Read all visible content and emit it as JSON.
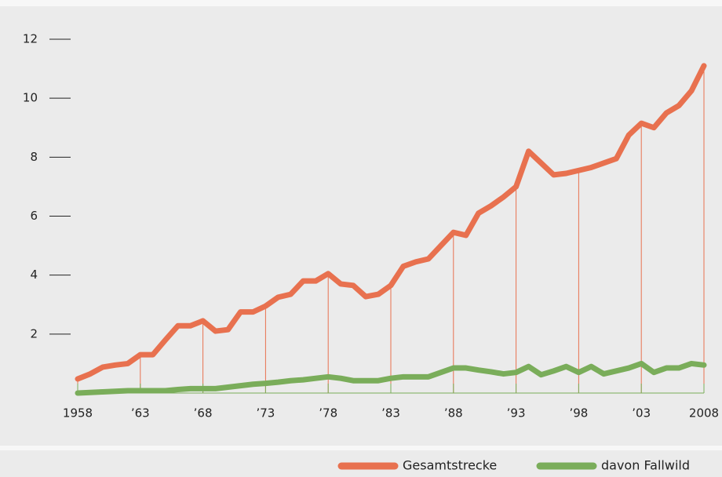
{
  "chart_data": {
    "type": "line",
    "x": [
      1958,
      1959,
      1960,
      1961,
      1962,
      1963,
      1964,
      1965,
      1966,
      1967,
      1968,
      1969,
      1970,
      1971,
      1972,
      1973,
      1974,
      1975,
      1976,
      1977,
      1978,
      1979,
      1980,
      1981,
      1982,
      1983,
      1984,
      1985,
      1986,
      1987,
      1988,
      1989,
      1990,
      1991,
      1992,
      1993,
      1994,
      1995,
      1996,
      1997,
      1998,
      1999,
      2000,
      2001,
      2002,
      2003,
      2004,
      2005,
      2006,
      2007,
      2008
    ],
    "series": [
      {
        "name": "Gesamtstrecke",
        "color": "#e8714f",
        "values": [
          0.48,
          0.65,
          0.88,
          0.95,
          1.0,
          1.3,
          1.3,
          1.8,
          2.28,
          2.28,
          2.45,
          2.1,
          2.15,
          2.75,
          2.75,
          2.95,
          3.25,
          3.35,
          3.8,
          3.8,
          4.05,
          3.7,
          3.65,
          3.27,
          3.35,
          3.65,
          4.3,
          4.45,
          4.55,
          5.0,
          5.45,
          5.35,
          6.1,
          6.35,
          6.65,
          7.0,
          8.2,
          7.8,
          7.4,
          7.45,
          7.55,
          7.65,
          7.8,
          7.95,
          8.75,
          9.15,
          9.0,
          9.5,
          9.75,
          10.25,
          11.1
        ]
      },
      {
        "name": "davon Fallwild",
        "color": "#7aad5a",
        "values": [
          0,
          0.02,
          0.04,
          0.06,
          0.08,
          0.08,
          0.08,
          0.08,
          0.12,
          0.15,
          0.15,
          0.15,
          0.2,
          0.25,
          0.3,
          0.33,
          0.37,
          0.42,
          0.45,
          0.5,
          0.55,
          0.5,
          0.42,
          0.42,
          0.42,
          0.5,
          0.55,
          0.55,
          0.55,
          0.7,
          0.85,
          0.85,
          0.78,
          0.72,
          0.65,
          0.7,
          0.9,
          0.62,
          0.75,
          0.9,
          0.7,
          0.9,
          0.65,
          0.75,
          0.85,
          1.0,
          0.7,
          0.85,
          0.85,
          1.0,
          0.95
        ]
      }
    ],
    "xlim": [
      1958,
      2008
    ],
    "xticks": [
      1958,
      {
        "value": 1963,
        "label": "’63"
      },
      {
        "value": 1968,
        "label": "’68"
      },
      {
        "value": 1973,
        "label": "’73"
      },
      {
        "value": 1978,
        "label": "’78"
      },
      {
        "value": 1983,
        "label": "’83"
      },
      {
        "value": 1988,
        "label": "’88"
      },
      {
        "value": 1993,
        "label": "’93"
      },
      {
        "value": 1998,
        "label": "’98"
      },
      {
        "value": 2003,
        "label": "’03"
      },
      2008
    ],
    "ylim": [
      0,
      12
    ],
    "yticks": [
      2,
      4,
      6,
      8,
      10,
      12
    ]
  }
}
